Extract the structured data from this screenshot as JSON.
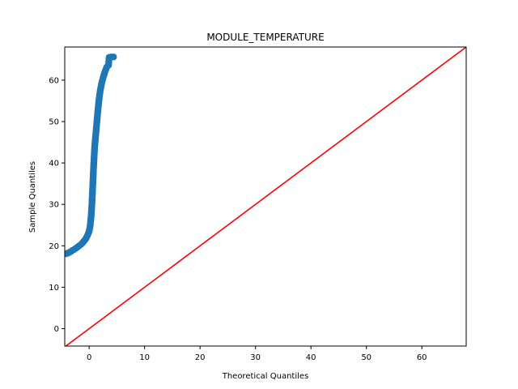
{
  "chart_data": {
    "type": "scatter",
    "title": "MODULE_TEMPERATURE",
    "xlabel": "Theoretical Quantiles",
    "ylabel": "Sample Quantiles",
    "xlim": [
      -4.4,
      68
    ],
    "ylim": [
      -4.2,
      68
    ],
    "xticks": [
      0,
      10,
      20,
      30,
      40,
      50,
      60
    ],
    "yticks": [
      0,
      10,
      20,
      30,
      40,
      50,
      60
    ],
    "grid": false,
    "series": [
      {
        "kind": "points",
        "color": "#1f77b4",
        "points": [
          [
            -4.2,
            18.1
          ],
          [
            -3.9,
            18.2
          ],
          [
            -3.6,
            18.4
          ],
          [
            -3.3,
            18.6
          ],
          [
            -3.0,
            18.9
          ],
          [
            -2.7,
            19.1
          ],
          [
            -2.4,
            19.4
          ],
          [
            -2.1,
            19.7
          ],
          [
            -1.8,
            20.0
          ],
          [
            -1.5,
            20.3
          ],
          [
            -1.2,
            20.7
          ],
          [
            -0.9,
            21.2
          ],
          [
            -0.6,
            21.7
          ],
          [
            -0.3,
            22.5
          ],
          [
            0.0,
            23.5
          ],
          [
            0.2,
            25.0
          ],
          [
            0.35,
            27.0
          ],
          [
            0.5,
            30.0
          ],
          [
            0.6,
            33.0
          ],
          [
            0.7,
            36.0
          ],
          [
            0.8,
            39.0
          ],
          [
            0.9,
            41.5
          ],
          [
            1.0,
            44.0
          ],
          [
            1.2,
            47.0
          ],
          [
            1.4,
            50.0
          ],
          [
            1.6,
            53.0
          ],
          [
            1.8,
            55.5
          ],
          [
            2.0,
            57.5
          ],
          [
            2.3,
            59.5
          ],
          [
            2.6,
            61.0
          ],
          [
            2.9,
            62.2
          ],
          [
            3.2,
            63.2
          ],
          [
            3.5,
            63.6
          ],
          [
            3.6,
            65.5
          ],
          [
            4.0,
            65.6
          ],
          [
            4.4,
            65.6
          ]
        ]
      },
      {
        "kind": "reference-line",
        "color": "#ff0000",
        "from": [
          -4.4,
          -4.4
        ],
        "to": [
          68,
          68
        ]
      }
    ]
  }
}
